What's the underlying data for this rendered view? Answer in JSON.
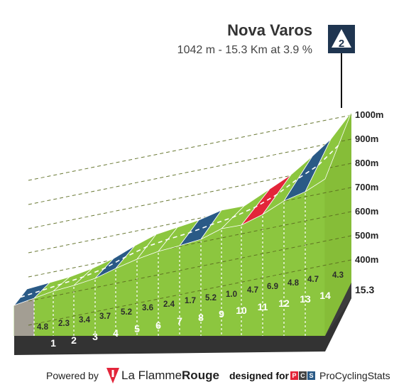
{
  "climb": {
    "name": "Nova Varos",
    "summary": "1042 m - 15.3 Km at 3.9 %",
    "category": "2"
  },
  "chart_data": {
    "type": "area",
    "title": "Nova Varos",
    "subtitle": "1042 m - 15.3 Km at 3.9 %",
    "xlabel": "",
    "ylabel": "",
    "x_unit": "km",
    "y_unit": "m",
    "km_ticks": [
      "1",
      "2",
      "3",
      "4",
      "5",
      "6",
      "7",
      "8",
      "9",
      "10",
      "11",
      "12",
      "13",
      "14"
    ],
    "km_end_label": "15.3",
    "segment_gradients": [
      "4.8",
      "2.3",
      "3.4",
      "3.7",
      "5.2",
      "3.6",
      "2.4",
      "1.7",
      "5.2",
      "1.0",
      "4.7",
      "6.9",
      "4.8",
      "4.7",
      "4.3"
    ],
    "segment_gradient_values": [
      4.8,
      2.3,
      3.4,
      3.7,
      5.2,
      3.6,
      2.4,
      1.7,
      5.2,
      1.0,
      4.7,
      6.9,
      4.8,
      4.7,
      4.3
    ],
    "segment_lengths_km": [
      1,
      1,
      1,
      1,
      1,
      1,
      1,
      1,
      1,
      1,
      1,
      1,
      1,
      1,
      1.3
    ],
    "gradient_colors": {
      "0-1": "#9aa2a8",
      "1-3": "#8cc63f",
      "3-6": "#8cc63f",
      "6-9": "#2e8ec9",
      "9+": "#e3253a"
    },
    "altitude_labels": [
      "400m",
      "500m",
      "600m",
      "700m",
      "800m",
      "900m",
      "1000m"
    ],
    "altitude_values": [
      400,
      500,
      600,
      700,
      800,
      900,
      1000
    ],
    "top_altitude_m": 1042,
    "distance_km": 15.3,
    "avg_gradient_pct": 3.9,
    "grid": true,
    "colors": {
      "slope": "#8cc63f",
      "slope_dark": "#2a5a86",
      "slope_red": "#e3253a",
      "start_wall": "#a39e93",
      "base": "#333333",
      "gridline": "#5a6b1f"
    }
  },
  "footer": {
    "powered_by": "Powered by",
    "lfr_brand_a": "La Flamme",
    "lfr_brand_b": "Rouge",
    "designed_for": "designed for",
    "pcs_letters": [
      "P",
      "C",
      "S"
    ],
    "pcs_brand": "ProCyclingStats"
  }
}
